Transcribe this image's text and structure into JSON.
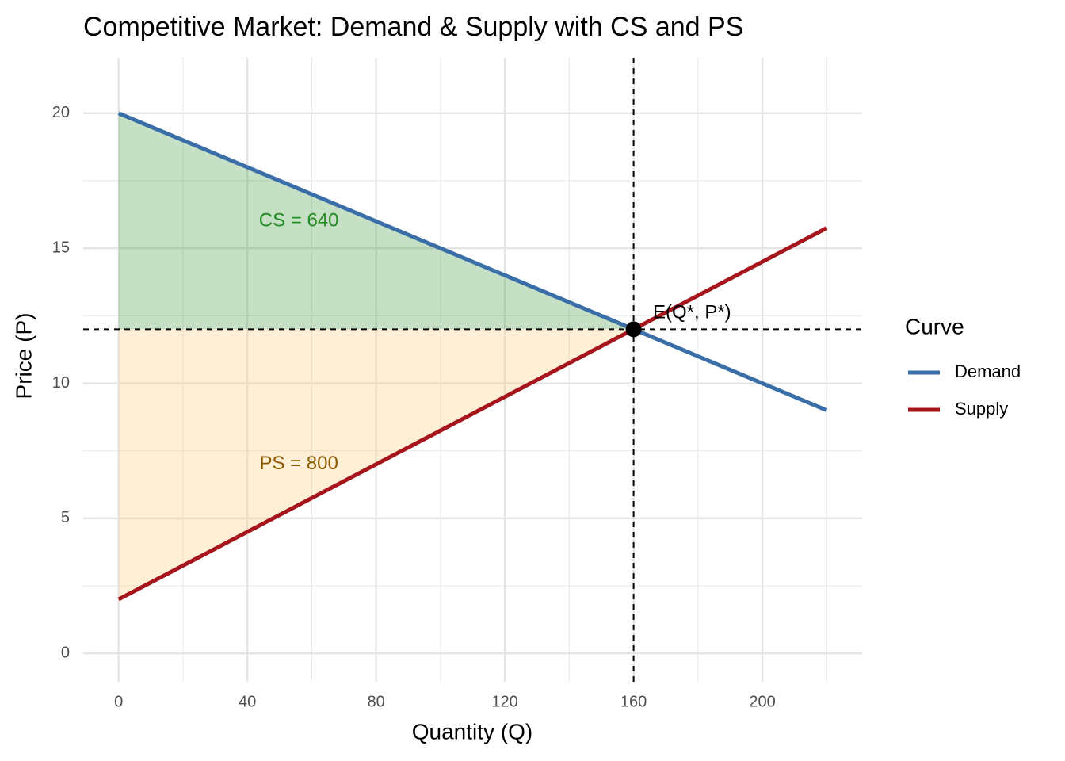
{
  "chart_data": {
    "type": "line",
    "title": "Competitive Market: Demand & Supply with CS and PS",
    "x_label": "Quantity (Q)",
    "y_label": "Price (P)",
    "x": [
      0,
      220
    ],
    "series": [
      {
        "name": "Demand",
        "color": "#3a6ea8",
        "values": [
          20,
          9
        ]
      },
      {
        "name": "Supply",
        "color": "#a6141c",
        "values": [
          2,
          15.75
        ]
      }
    ],
    "shaded_areas": [
      {
        "label": "CS = 640",
        "color": "#2e8b2e",
        "label_color": "#228b22",
        "x": [
          0,
          160,
          0
        ],
        "y": [
          20,
          12,
          12
        ],
        "label_x": 56,
        "label_y": 16
      },
      {
        "label": "PS = 800",
        "color": "#ffc46b",
        "label_color": "#8b5a00",
        "x": [
          0,
          160,
          0
        ],
        "y": [
          12,
          12,
          2
        ],
        "label_x": 56,
        "label_y": 7
      }
    ],
    "equilibrium": {
      "label": "E(Q*, P*)",
      "x": 160,
      "y": 12,
      "label_x": 166,
      "label_y": 12.6
    },
    "xlim": [
      -11,
      231
    ],
    "ylim": [
      -1.05,
      22.05
    ],
    "xticks": [
      0,
      40,
      80,
      120,
      160,
      200
    ],
    "yticks": [
      0,
      5,
      10,
      15,
      20
    ],
    "xminorticks": [
      20,
      60,
      100,
      140,
      180,
      220
    ],
    "yminorticks": [
      2.5,
      7.5,
      12.5,
      17.5
    ],
    "grid": true,
    "legend_title": "Curve",
    "legend_position": "right"
  }
}
